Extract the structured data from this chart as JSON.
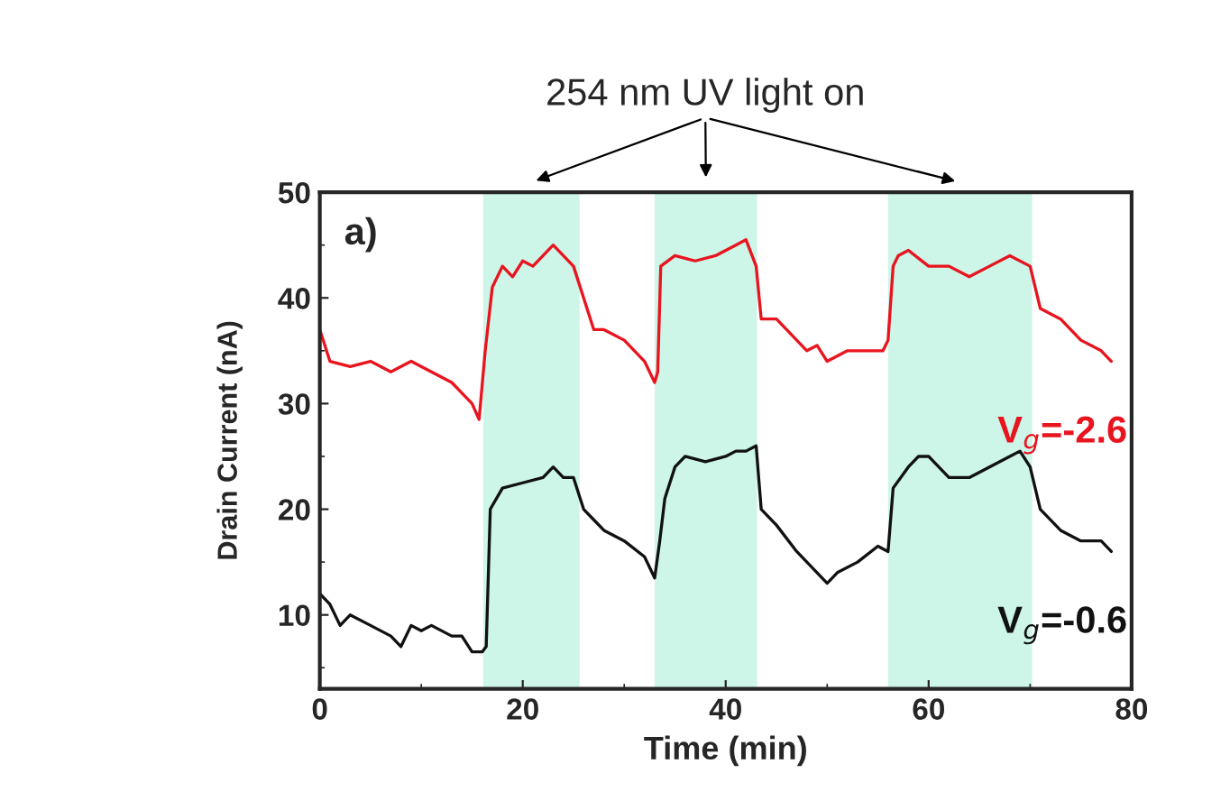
{
  "chart_data": {
    "type": "line",
    "xlabel": "Time (min)",
    "ylabel": "Drain Current (nA)",
    "xlim": [
      0,
      80
    ],
    "xticks": [
      0,
      20,
      40,
      60,
      80
    ],
    "ylim": [
      3,
      50
    ],
    "yticks": [
      10,
      20,
      30,
      40,
      50
    ],
    "grid": false,
    "legend": false,
    "annotations": [
      "254 nm UV light on",
      "a)"
    ],
    "bands": [
      {
        "axis": "x",
        "from": 16.1,
        "to": 25.6,
        "color": "#cdf5e8"
      },
      {
        "axis": "x",
        "from": 33.0,
        "to": 43.1,
        "color": "#cdf5e8"
      },
      {
        "axis": "x",
        "from": 56.0,
        "to": 70.2,
        "color": "#cdf5e8"
      }
    ],
    "series": [
      {
        "name": "V$_{g}$=-2.6",
        "color": "#e8141e",
        "x": [
          0,
          1,
          3,
          5,
          7,
          9,
          11,
          13,
          15,
          15.7,
          16.3,
          17,
          18,
          19,
          20,
          21,
          22,
          23,
          24,
          25,
          26,
          27,
          28,
          30,
          32,
          33,
          33.3,
          33.6,
          35,
          37,
          39,
          41,
          42,
          43,
          43.5,
          45,
          47,
          48,
          49,
          50,
          52,
          54,
          55.5,
          56,
          56.5,
          57,
          58,
          60,
          62,
          64,
          66,
          68,
          70,
          71,
          73,
          75,
          77,
          78
        ],
        "values": [
          37,
          34,
          33.5,
          34,
          33,
          34,
          33,
          32,
          30,
          28.5,
          35,
          41,
          43,
          42,
          43.5,
          43,
          44,
          45,
          44,
          43,
          40,
          37,
          37,
          36,
          34,
          32,
          33,
          43,
          44,
          43.5,
          44,
          45,
          45.5,
          43,
          38,
          38,
          36,
          35,
          35.5,
          34,
          35,
          35,
          35,
          36,
          43,
          44,
          44.5,
          43,
          43,
          42,
          43,
          44,
          43,
          39,
          38,
          36,
          35,
          34
        ]
      },
      {
        "name": "V$_{g}$=-0.6",
        "color": "#111111",
        "x": [
          0,
          1,
          2,
          3,
          5,
          7,
          8,
          9,
          10,
          11,
          13,
          14,
          15,
          16,
          16.4,
          16.8,
          18,
          20,
          22,
          23,
          24,
          25,
          26,
          27,
          28,
          30,
          32,
          33,
          33.5,
          34,
          35,
          36,
          38,
          40,
          41,
          42,
          43,
          43.5,
          45,
          47,
          48,
          49,
          50,
          51,
          53,
          55,
          56,
          56.5,
          58,
          59,
          60,
          62,
          64,
          66,
          68,
          69,
          70,
          71,
          73,
          75,
          77,
          78
        ],
        "values": [
          12,
          11,
          9,
          10,
          9,
          8,
          7,
          9,
          8.5,
          9,
          8,
          8,
          6.5,
          6.5,
          7,
          20,
          22,
          22.5,
          23,
          24,
          23,
          23,
          20,
          19,
          18,
          17,
          15.5,
          13.5,
          17,
          21,
          24,
          25,
          24.5,
          25,
          25.5,
          25.5,
          26,
          20,
          18.5,
          16,
          15,
          14,
          13,
          14,
          15,
          16.5,
          16,
          22,
          24,
          25,
          25,
          23,
          23,
          24,
          25,
          25.5,
          24,
          20,
          18,
          17,
          17,
          16
        ]
      }
    ]
  }
}
